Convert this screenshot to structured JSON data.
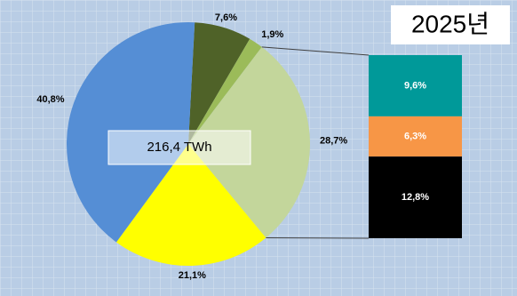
{
  "chart_data": {
    "type": "pie-of-bar",
    "title": "2025년",
    "center_label": "216,4 TWh",
    "values": [
      7.6,
      1.9,
      28.7,
      21.1,
      40.8
    ],
    "value_labels": [
      "7,6%",
      "1,9%",
      "28,7%",
      "21,1%",
      "40,8%"
    ],
    "colors": [
      "#4f6228",
      "#9bbb59",
      "#c3d69b",
      "#ffff00",
      "#558ed5"
    ],
    "bar": {
      "values": [
        9.6,
        6.3,
        12.8
      ],
      "value_labels": [
        "9,6%",
        "6,3%",
        "12,8%"
      ],
      "colors": [
        "#009999",
        "#f79646",
        "#000000"
      ]
    }
  }
}
